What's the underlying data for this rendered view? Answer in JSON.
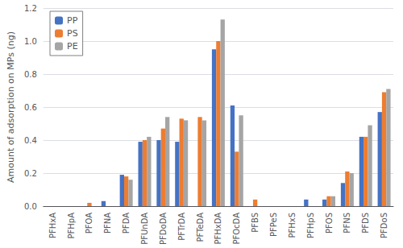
{
  "chart_data": {
    "type": "bar",
    "ylabel": "Amount of adsorption on MPs (ng)",
    "categories": [
      "PFHxA",
      "PFHpA",
      "PFOA",
      "PFNA",
      "PFDA",
      "PFUnDA",
      "PFDoDA",
      "PFTrDA",
      "PFTeDA",
      "PFHxDA",
      "PFOcDA",
      "PFBS",
      "PFPeS",
      "PFHxS",
      "PFHpS",
      "PFOS",
      "PFNS",
      "PFDS",
      "PFDoS"
    ],
    "series": [
      {
        "name": "PP",
        "color": "#4472C4",
        "values": [
          0.0,
          0.0,
          0.0,
          0.03,
          0.19,
          0.39,
          0.4,
          0.39,
          0.0,
          0.95,
          0.61,
          0.0,
          0.0,
          0.0,
          0.04,
          0.04,
          0.14,
          0.42,
          0.57
        ]
      },
      {
        "name": "PS",
        "color": "#ED7D31",
        "values": [
          0.0,
          0.0,
          0.02,
          0.0,
          0.18,
          0.4,
          0.47,
          0.53,
          0.54,
          1.0,
          0.33,
          0.04,
          0.0,
          0.0,
          0.0,
          0.06,
          0.21,
          0.42,
          0.69
        ]
      },
      {
        "name": "PE",
        "color": "#A5A5A5",
        "values": [
          0.0,
          0.0,
          0.0,
          0.0,
          0.16,
          0.42,
          0.54,
          0.52,
          0.52,
          1.13,
          0.55,
          0.0,
          0.0,
          0.0,
          0.0,
          0.06,
          0.2,
          0.49,
          0.71
        ]
      }
    ],
    "ylim": [
      0,
      1.2
    ],
    "yticks": [
      {
        "value": 0,
        "label": "0.0"
      },
      0.2,
      0.4,
      0.6,
      0.8,
      {
        "value": 1,
        "label": "1.0"
      },
      1.2
    ],
    "grid": true,
    "legend": "upper left"
  }
}
